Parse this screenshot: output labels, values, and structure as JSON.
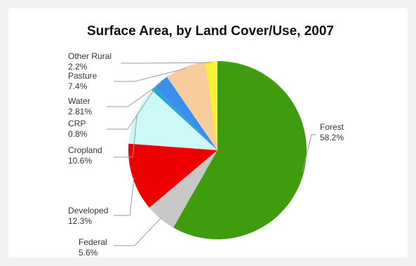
{
  "chart_data": {
    "type": "pie",
    "title": "Surface Area, by Land Cover/Use, 2007",
    "slices": [
      {
        "name": "Forest",
        "value": 58.2,
        "label": "58.2%",
        "color": "#3f9c0f"
      },
      {
        "name": "Federal",
        "value": 5.6,
        "label": "5.6%",
        "color": "#c8c8c8"
      },
      {
        "name": "Developed",
        "value": 12.3,
        "label": "12.3%",
        "color": "#ee0000"
      },
      {
        "name": "Cropland",
        "value": 10.6,
        "label": "10.6%",
        "color": "#ccf8f8"
      },
      {
        "name": "CRP",
        "value": 0.8,
        "label": "0.8%",
        "color": "#2aa8cc"
      },
      {
        "name": "Water",
        "value": 2.81,
        "label": "2.81%",
        "color": "#3a8ef0"
      },
      {
        "name": "Pasture",
        "value": 7.4,
        "label": "7.4%",
        "color": "#f8cc9c"
      },
      {
        "name": "Other Rural",
        "value": 2.2,
        "label": "2.2%",
        "color": "#f8f03a"
      }
    ],
    "start_at": "top",
    "direction": "clockwise"
  }
}
